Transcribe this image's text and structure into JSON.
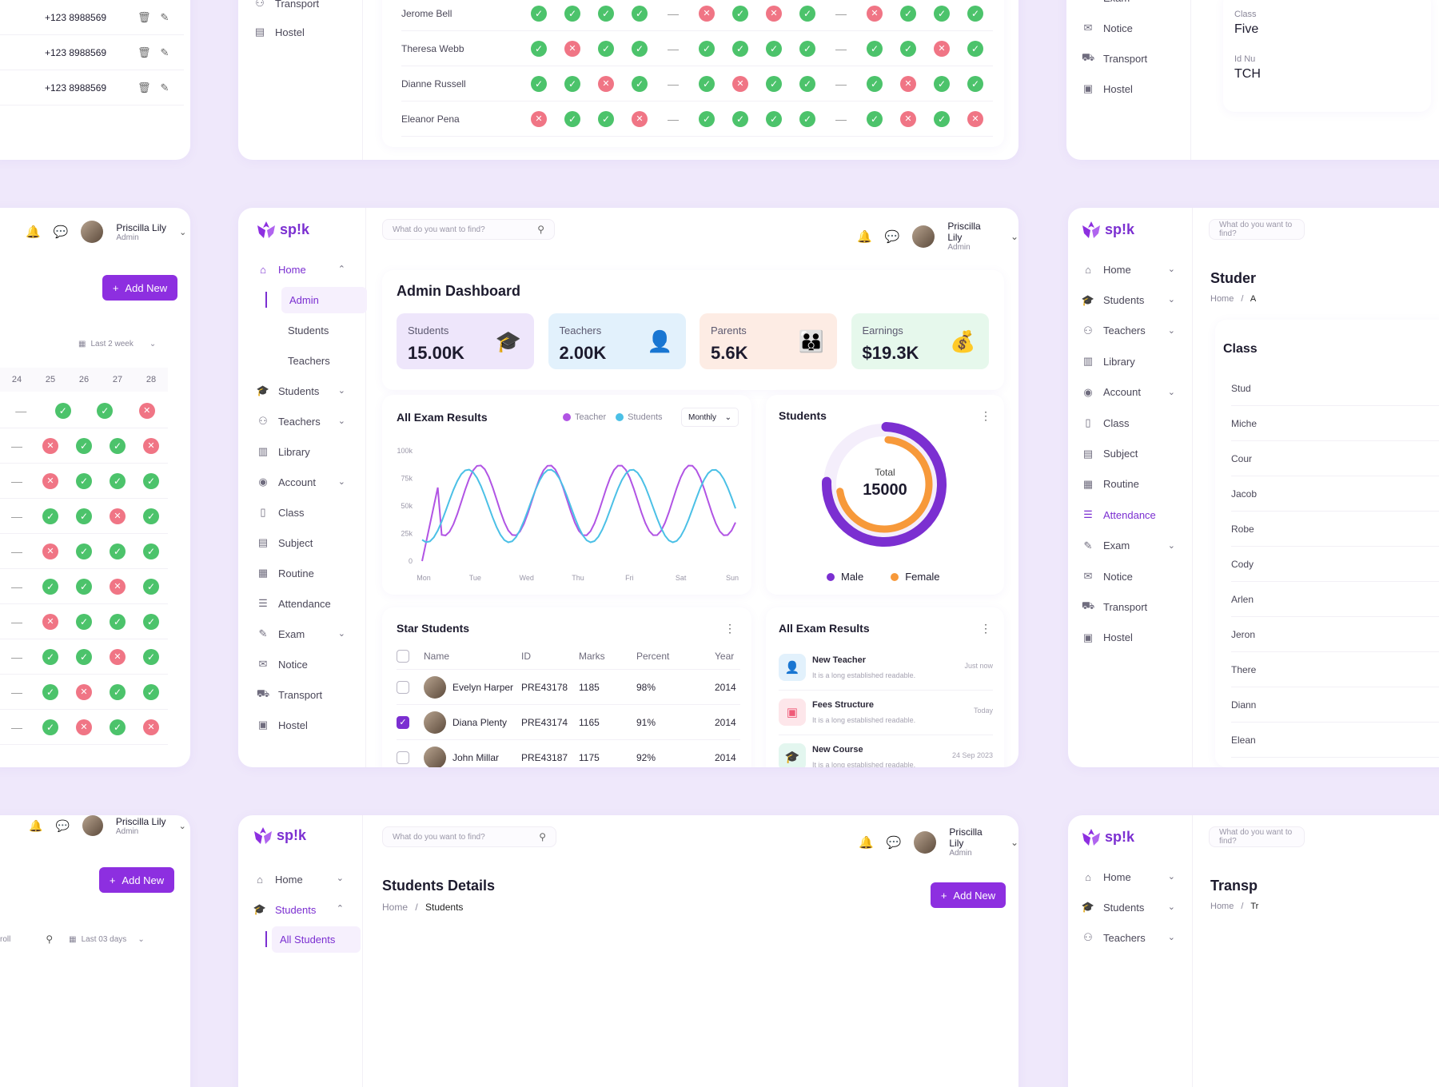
{
  "brand": {
    "name": "sp!k",
    "accent": "#7b2fd1"
  },
  "user": {
    "name": "Priscilla Lily",
    "role": "Admin"
  },
  "search": {
    "placeholder": "What do you want to find?"
  },
  "nav": [
    {
      "label": "Home",
      "icon": "home-icon",
      "chevron": true,
      "active": true
    },
    {
      "label": "Students",
      "icon": "graduation-icon",
      "chevron": true
    },
    {
      "label": "Teachers",
      "icon": "teachers-icon",
      "chevron": true
    },
    {
      "label": "Library",
      "icon": "library-icon"
    },
    {
      "label": "Account",
      "icon": "account-icon",
      "chevron": true
    },
    {
      "label": "Class",
      "icon": "class-icon"
    },
    {
      "label": "Subject",
      "icon": "subject-icon"
    },
    {
      "label": "Routine",
      "icon": "calendar-icon"
    },
    {
      "label": "Attendance",
      "icon": "attendance-icon"
    },
    {
      "label": "Exam",
      "icon": "exam-icon",
      "chevron": true
    },
    {
      "label": "Notice",
      "icon": "notice-icon"
    },
    {
      "label": "Transport",
      "icon": "bus-icon"
    },
    {
      "label": "Hostel",
      "icon": "hostel-icon"
    }
  ],
  "home_sub": [
    "Admin",
    "Students",
    "Teachers"
  ],
  "dashboard": {
    "title": "Admin Dashboard",
    "stats": [
      {
        "label": "Students",
        "value": "15.00K",
        "bg": "#eee6fb",
        "icon": "graduate-icon",
        "color": "#9a5be6"
      },
      {
        "label": "Teachers",
        "value": "2.00K",
        "bg": "#e2f1fc",
        "icon": "teacher-icon",
        "color": "#3b9be3"
      },
      {
        "label": "Parents",
        "value": "5.6K",
        "bg": "#fdece4",
        "icon": "parents-icon",
        "color": "#f58a4a"
      },
      {
        "label": "Earnings",
        "value": "$19.3K",
        "bg": "#e6f8ec",
        "icon": "money-bag-icon",
        "color": "#39b65f"
      }
    ]
  },
  "exam_chart": {
    "title": "All Exam Results",
    "legend": [
      "Teacher",
      "Students"
    ],
    "period": "Monthly",
    "yticks": [
      "100k",
      "75k",
      "50k",
      "25k",
      "0"
    ],
    "xticks": [
      "Mon",
      "Tue",
      "Wed",
      "Thu",
      "Fri",
      "Sat",
      "Sun"
    ]
  },
  "students_donut": {
    "title": "Students",
    "total_label": "Total",
    "total": "15000",
    "legend": [
      "Male",
      "Female"
    ],
    "male_color": "#7b2fd1",
    "female_color": "#f7993a"
  },
  "star_students": {
    "title": "Star Students",
    "columns": [
      "Name",
      "ID",
      "Marks",
      "Percent",
      "Year"
    ],
    "rows": [
      {
        "name": "Evelyn Harper",
        "id": "PRE43178",
        "marks": "1185",
        "percent": "98%",
        "year": "2014",
        "checked": false
      },
      {
        "name": "Diana Plenty",
        "id": "PRE43174",
        "marks": "1165",
        "percent": "91%",
        "year": "2014",
        "checked": true
      },
      {
        "name": "John Millar",
        "id": "PRE43187",
        "marks": "1175",
        "percent": "92%",
        "year": "2014",
        "checked": false
      }
    ]
  },
  "exam_results_list": {
    "title": "All Exam Results",
    "items": [
      {
        "title": "New Teacher",
        "desc": "It is a long established readable.",
        "time": "Just now",
        "bg": "#e2f1fc",
        "color": "#3b9be3"
      },
      {
        "title": "Fees Structure",
        "desc": "It is a long established readable.",
        "time": "Today",
        "bg": "#fde6ea",
        "color": "#ef5b78"
      },
      {
        "title": "New Course",
        "desc": "It is a long established readable.",
        "time": "24 Sep 2023",
        "bg": "#e3f6ef",
        "color": "#3cc28f"
      }
    ]
  },
  "top_attendance": {
    "names": [
      "Jerome Bell",
      "Theresa Webb",
      "Dianne Russell",
      "Eleanor Pena"
    ]
  },
  "left_panel": {
    "phones": [
      "+123 8988569",
      "+123 8988569",
      "+123 8988569"
    ],
    "add_new": "Add New",
    "range": "Last 2 week",
    "days": [
      "24",
      "25",
      "26",
      "27",
      "28"
    ]
  },
  "top_mid_nav": [
    "Transport",
    "Hostel"
  ],
  "right_top_nav": [
    "Exam",
    "Notice",
    "Transport",
    "Hostel"
  ],
  "right_top_card": {
    "class_label": "Class",
    "class_value": "Five",
    "id_label": "Id Nu",
    "id_value": "TCH"
  },
  "right_mid": {
    "title": "Studer",
    "crumb_home": "Home",
    "crumb_sep": "/",
    "crumb_cur": "A",
    "card_title": "Class",
    "names": [
      "Stud",
      "Miche",
      "Cour",
      "Jacob",
      "Robe",
      "Cody",
      "Arlen",
      "Jeron",
      "There",
      "Diann",
      "Elean"
    ],
    "active": "Attendance"
  },
  "bottom_left": {
    "range": "Last 03 days",
    "roll": "roll",
    "add_new": "Add New",
    "user_name": "Priscilla Lily",
    "user_role": "Admin"
  },
  "bottom_mid": {
    "title": "Students Details",
    "crumb_home": "Home",
    "crumb_sep": "/",
    "crumb_cur": "Students",
    "add_new": "Add New",
    "nav": [
      "Home",
      "Students"
    ],
    "sub": "All Students"
  },
  "bottom_right": {
    "title": "Transp",
    "crumb_home": "Home",
    "crumb_sep": "/",
    "crumb_cur": "Tr",
    "nav": [
      "Home",
      "Students",
      "Teachers"
    ]
  }
}
